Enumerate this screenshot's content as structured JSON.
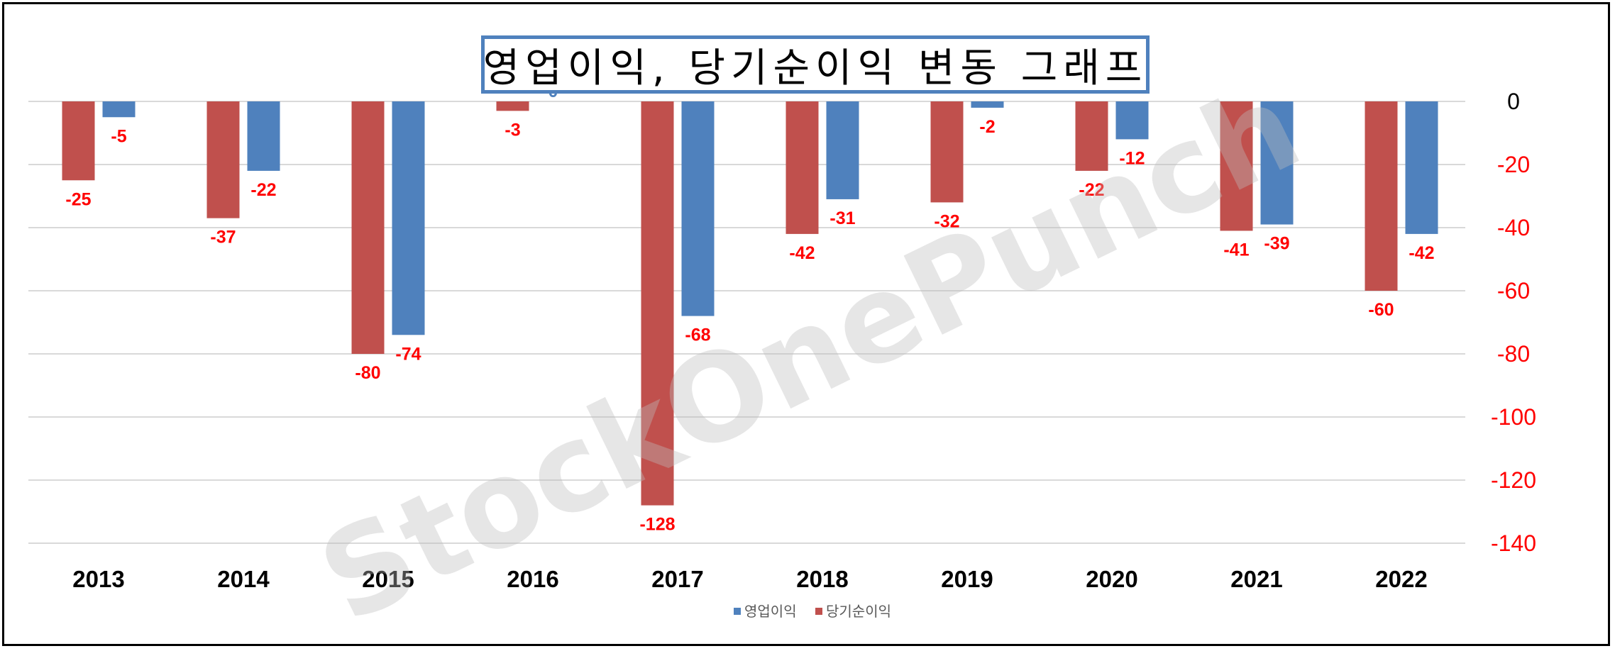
{
  "watermark": "StockOnePunch",
  "chart_data": {
    "type": "bar",
    "title": "영업이익, 당기순이익 변동 그래프",
    "categories": [
      "2013",
      "2014",
      "2015",
      "2016",
      "2017",
      "2018",
      "2019",
      "2020",
      "2021",
      "2022"
    ],
    "series": [
      {
        "name": "당기순이익",
        "color": "#c0504d",
        "values": [
          -25,
          -37,
          -80,
          -3,
          -128,
          -42,
          -32,
          -22,
          -41,
          -60
        ]
      },
      {
        "name": "영업이익",
        "color": "#4f81bd",
        "values": [
          -5,
          -22,
          -74,
          0,
          -68,
          -31,
          -2,
          -12,
          -39,
          -42
        ]
      }
    ],
    "y_axis": {
      "min": -140,
      "max": 0,
      "step": 20,
      "position": "right"
    },
    "legend": {
      "position": "bottom",
      "order": [
        "영업이익",
        "당기순이익"
      ]
    },
    "grid": true
  }
}
